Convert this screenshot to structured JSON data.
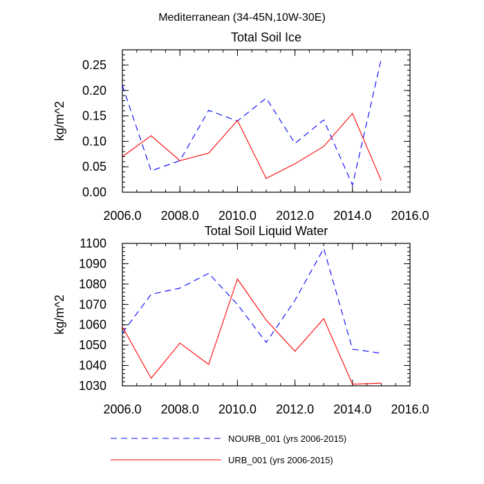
{
  "figure_title": "Mediterranean (34-45N,10W-30E)",
  "chart_data": [
    {
      "type": "line",
      "title": "Total Soil Ice",
      "xlabel": "",
      "ylabel": "kg/m^2",
      "xlim": [
        2006,
        2016
      ],
      "ylim": [
        0,
        0.28
      ],
      "x_ticks": [
        2006,
        2008,
        2010,
        2012,
        2014,
        2016
      ],
      "x_tick_labels": [
        "2006.0",
        "2008.0",
        "2010.0",
        "2012.0",
        "2014.0",
        "2016.0"
      ],
      "y_ticks": [
        0,
        0.05,
        0.1,
        0.15,
        0.2,
        0.25
      ],
      "y_tick_labels": [
        "0.00",
        "0.05",
        "0.10",
        "0.15",
        "0.20",
        "0.25"
      ],
      "x": [
        2006,
        2007,
        2008,
        2009,
        2010,
        2011,
        2012,
        2013,
        2014,
        2015
      ],
      "series": [
        {
          "name": "NOURB_001 (yrs 2006-2015)",
          "color": "#0000ff",
          "dash": "dashed",
          "values": [
            0.21,
            0.042,
            0.062,
            0.161,
            0.14,
            0.185,
            0.096,
            0.142,
            0.014,
            0.262
          ]
        },
        {
          "name": "URB_001 (yrs 2006-2015)",
          "color": "#ff0000",
          "dash": "solid",
          "values": [
            0.07,
            0.111,
            0.062,
            0.077,
            0.141,
            0.027,
            0.056,
            0.09,
            0.155,
            0.023
          ]
        }
      ]
    },
    {
      "type": "line",
      "title": "Total Soil Liquid Water",
      "xlabel": "",
      "ylabel": "kg/m^2",
      "xlim": [
        2006,
        2016
      ],
      "ylim": [
        1030,
        1100
      ],
      "x_ticks": [
        2006,
        2008,
        2010,
        2012,
        2014,
        2016
      ],
      "x_tick_labels": [
        "2006.0",
        "2008.0",
        "2010.0",
        "2012.0",
        "2014.0",
        "2016.0"
      ],
      "y_ticks": [
        1030,
        1040,
        1050,
        1060,
        1070,
        1080,
        1090,
        1100
      ],
      "y_tick_labels": [
        "1030",
        "1040",
        "1050",
        "1060",
        "1070",
        "1080",
        "1090",
        "1100"
      ],
      "x": [
        2006,
        2007,
        2008,
        2009,
        2010,
        2011,
        2012,
        2013,
        2014,
        2015
      ],
      "series": [
        {
          "name": "NOURB_001 (yrs 2006-2015)",
          "color": "#0000ff",
          "dash": "dashed",
          "values": [
            1056,
            1075,
            1078,
            1085.3,
            1070,
            1051.3,
            1072,
            1097.5,
            1048,
            1046
          ]
        },
        {
          "name": "URB_001 (yrs 2006-2015)",
          "color": "#ff0000",
          "dash": "solid",
          "values": [
            1059,
            1033.7,
            1051,
            1040.5,
            1082.5,
            1062.3,
            1047,
            1063,
            1030.8,
            1031.3
          ]
        }
      ]
    }
  ],
  "legend": [
    {
      "label": "NOURB_001 (yrs 2006-2015)",
      "color": "#0000ff",
      "dash": "dashed"
    },
    {
      "label": "URB_001 (yrs 2006-2015)",
      "color": "#ff0000",
      "dash": "solid"
    }
  ]
}
